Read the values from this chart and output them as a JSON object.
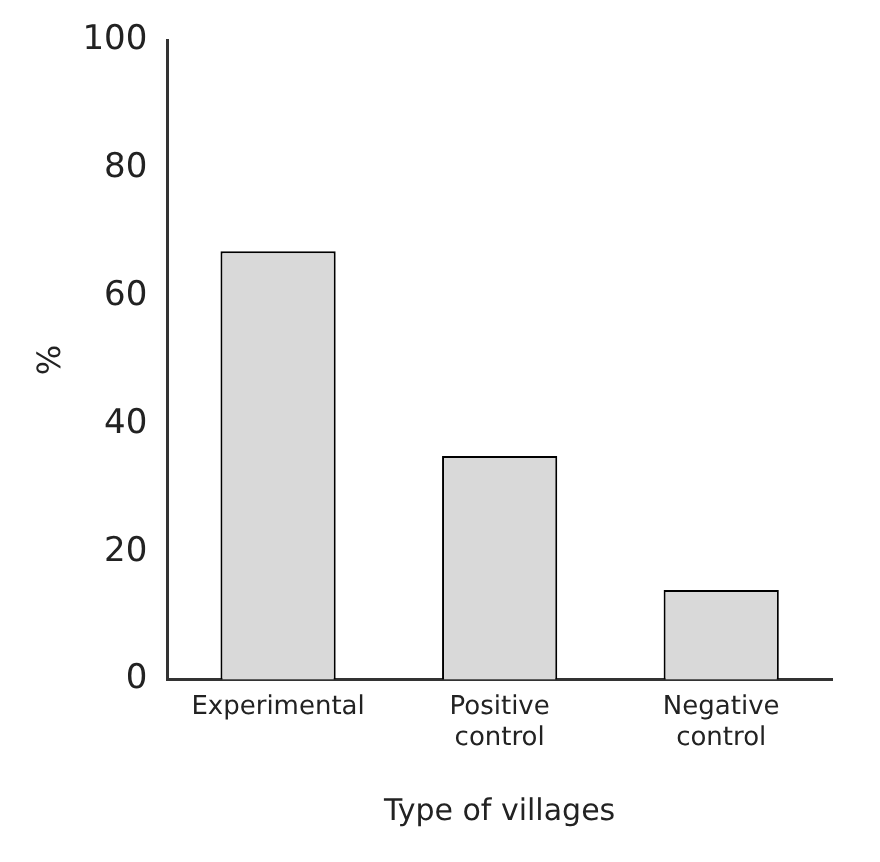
{
  "chart_data": {
    "type": "bar",
    "xlabel": "Type of villages",
    "ylabel": "%",
    "categories": [
      [
        "Experimental"
      ],
      [
        "Positive",
        "control"
      ],
      [
        "Negative",
        "control"
      ]
    ],
    "values": [
      67,
      35,
      14
    ],
    "color": "#d9d9d9",
    "ylim": [
      0,
      100
    ],
    "yticks": [
      0,
      20,
      40,
      60,
      80,
      100
    ],
    "grid": false,
    "legend": false
  }
}
